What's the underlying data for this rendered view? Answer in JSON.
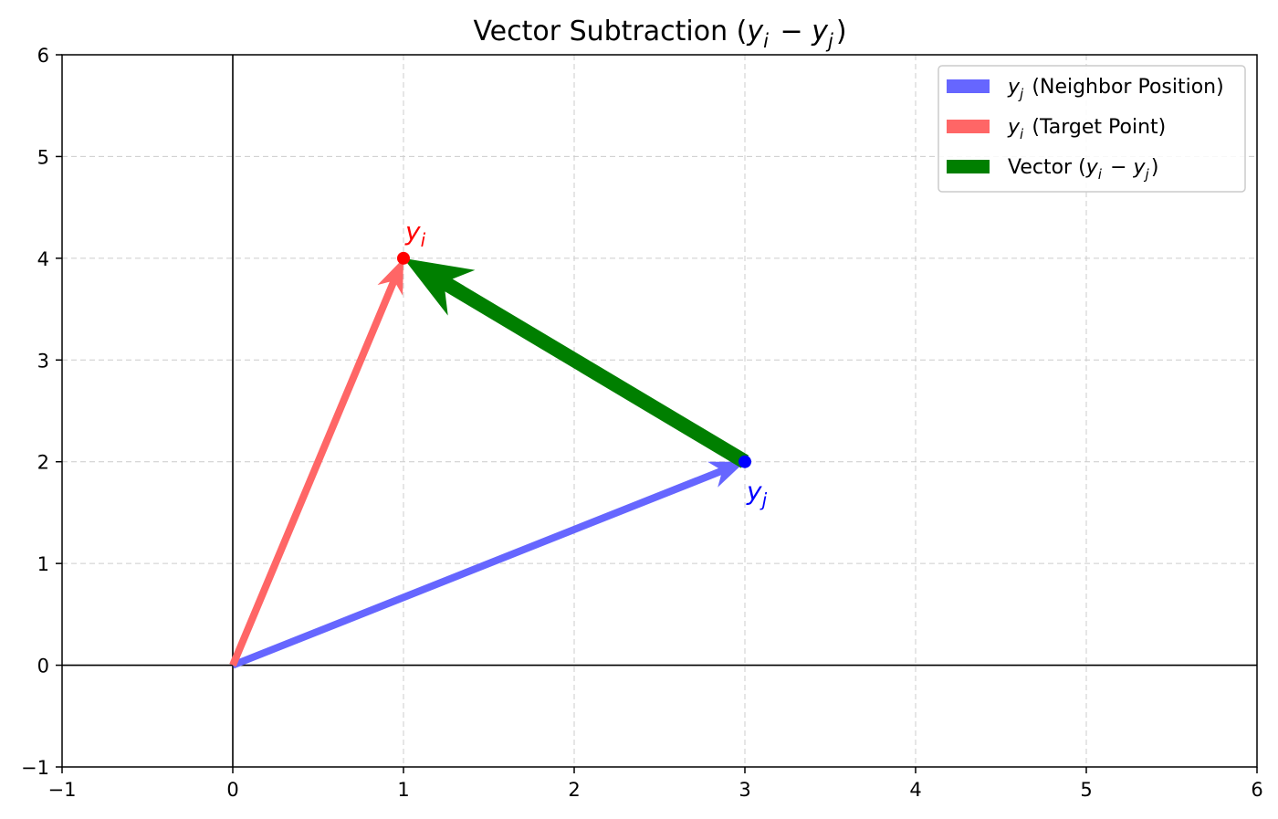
{
  "chart_data": {
    "type": "vector",
    "title": {
      "prefix": "Vector Subtraction (",
      "a": "y",
      "a_sub": "i",
      "op": " − ",
      "b": "y",
      "b_sub": "j",
      "suffix": ")"
    },
    "xlim": [
      -1,
      6
    ],
    "ylim": [
      -1,
      6
    ],
    "xticks": [
      -1,
      0,
      1,
      2,
      3,
      4,
      5,
      6
    ],
    "yticks": [
      -1,
      0,
      1,
      2,
      3,
      4,
      5,
      6
    ],
    "xtick_labels": [
      "−1",
      "0",
      "1",
      "2",
      "3",
      "4",
      "5",
      "6"
    ],
    "ytick_labels": [
      "−1",
      "0",
      "1",
      "2",
      "3",
      "4",
      "5",
      "6"
    ],
    "grid": true,
    "legend_position": "top-right",
    "vectors": [
      {
        "id": "yj",
        "from": [
          0,
          0
        ],
        "to": [
          3,
          2
        ],
        "color": "#6666ff",
        "legend": {
          "sym": "y",
          "sub": "j",
          "text": " (Neighbor Position)"
        }
      },
      {
        "id": "yi",
        "from": [
          0,
          0
        ],
        "to": [
          1,
          4
        ],
        "color": "#ff6666",
        "legend": {
          "sym": "y",
          "sub": "i",
          "text": " (Target Point)"
        }
      },
      {
        "id": "diff",
        "from": [
          3,
          2
        ],
        "to": [
          1,
          4
        ],
        "color": "#007f00",
        "legend": {
          "text": "Vector (",
          "sym": "y",
          "sub": "i",
          "op": " − ",
          "sym2": "y",
          "sub2": "j",
          "close": ")"
        }
      }
    ],
    "points": [
      {
        "id": "yi",
        "x": 1,
        "y": 4,
        "color": "#ff0000",
        "label": "y",
        "label_sub": "i",
        "label_pos": "above"
      },
      {
        "id": "yj",
        "x": 3,
        "y": 2,
        "color": "#0000ff",
        "label": "y",
        "label_sub": "j",
        "label_pos": "below"
      }
    ]
  }
}
